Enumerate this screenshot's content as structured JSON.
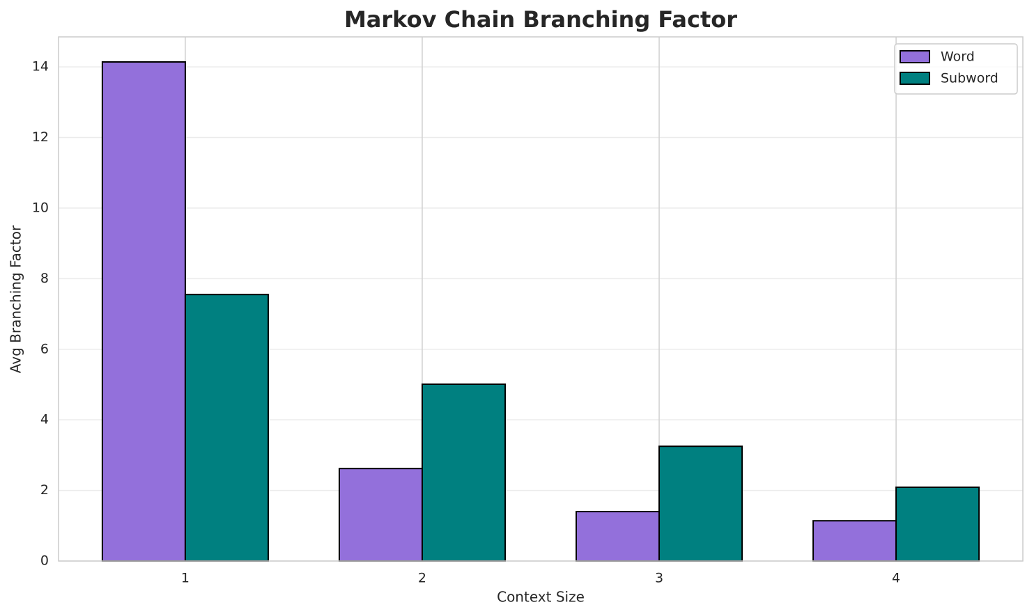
{
  "chart_data": {
    "type": "bar",
    "title": "Markov Chain Branching Factor",
    "x_label": "Context Size",
    "y_label": "Avg Branching Factor",
    "categories": [
      "1",
      "2",
      "3",
      "4"
    ],
    "series": [
      {
        "name": "Word",
        "color": "#9370db",
        "values": [
          14.14,
          2.62,
          1.4,
          1.14
        ]
      },
      {
        "name": "Subword",
        "color": "#008080",
        "values": [
          7.55,
          5.01,
          3.25,
          2.09
        ]
      }
    ],
    "ylim": [
      0,
      14.85
    ],
    "yticks": [
      0,
      2,
      4,
      6,
      8,
      10,
      12,
      14
    ],
    "grid": true,
    "legend": "upper right"
  }
}
